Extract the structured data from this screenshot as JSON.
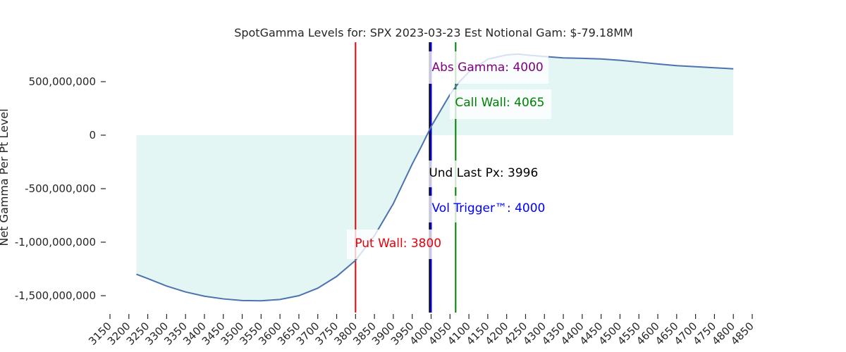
{
  "colors": {
    "curve": "#4c72b0",
    "fill": "#e3f6f3",
    "put_wall": "#e8000b",
    "call_wall": "#008000",
    "abs_gamma": "#800080",
    "vol_trigger": "#0000ff",
    "und_last_px": "#000000",
    "text": "#262626"
  },
  "chart_data": {
    "type": "line",
    "title": "SpotGamma Levels for: SPX  2023-03-23 Est Notional Gam: $-79.18MM",
    "xlabel": "",
    "ylabel": "Net Gamma Per Pt Level",
    "xlim": [
      3150,
      4850
    ],
    "ylim": [
      -1650000000,
      850000000
    ],
    "grid": false,
    "fill_to_zero": true,
    "x_ticks": [
      3150,
      3200,
      3250,
      3300,
      3350,
      3400,
      3450,
      3500,
      3550,
      3600,
      3650,
      3700,
      3750,
      3800,
      3850,
      3900,
      3950,
      4000,
      4050,
      4100,
      4150,
      4200,
      4250,
      4300,
      4350,
      4400,
      4450,
      4500,
      4550,
      4600,
      4650,
      4700,
      4750,
      4800,
      4850
    ],
    "x_tick_labels": [
      "3150",
      "3200",
      "3250",
      "3300",
      "3350",
      "3400",
      "3450",
      "3500",
      "3550",
      "3600",
      "3650",
      "3700",
      "3750",
      "3800",
      "3850",
      "3900",
      "3950",
      "4000",
      "4050",
      "4100",
      "4150",
      "4200",
      "4250",
      "4300",
      "4350",
      "4400",
      "4450",
      "4500",
      "4550",
      "4600",
      "4650",
      "4700",
      "4750",
      "4800",
      "4850"
    ],
    "y_ticks": [
      500000000,
      0,
      -500000000,
      -1000000000,
      -1500000000
    ],
    "y_tick_labels": [
      "500,000,000",
      "0",
      "-500,000,000",
      "-1,000,000,000",
      "-1,500,000,000"
    ],
    "series": [
      {
        "x": [
          3220,
          3250,
          3300,
          3350,
          3400,
          3450,
          3500,
          3550,
          3600,
          3650,
          3700,
          3750,
          3800,
          3850,
          3900,
          3950,
          3975,
          4000,
          4025,
          4050,
          4075,
          4100,
          4150,
          4200,
          4230,
          4250,
          4300,
          4350,
          4400,
          4450,
          4500,
          4550,
          4600,
          4650,
          4700,
          4750,
          4800
        ],
        "y": [
          -1300000000,
          -1340000000,
          -1410000000,
          -1465000000,
          -1505000000,
          -1530000000,
          -1545000000,
          -1548000000,
          -1535000000,
          -1500000000,
          -1430000000,
          -1320000000,
          -1170000000,
          -940000000,
          -640000000,
          -270000000,
          -100000000,
          80000000,
          230000000,
          380000000,
          500000000,
          590000000,
          710000000,
          750000000,
          758000000,
          750000000,
          735000000,
          722000000,
          718000000,
          712000000,
          700000000,
          683000000,
          665000000,
          650000000,
          640000000,
          630000000,
          620000000
        ]
      }
    ],
    "levels": [
      {
        "key": "put_wall",
        "x": 3800,
        "label": "Put Wall: 3800"
      },
      {
        "key": "call_wall",
        "x": 4065,
        "label": "Call Wall: 4065"
      },
      {
        "key": "abs_gamma",
        "x": 4000,
        "label": "Abs Gamma: 4000"
      },
      {
        "key": "vol_trigger",
        "x": 4000,
        "label": "Vol Trigger™: 4000"
      },
      {
        "key": "und_last_px",
        "x": 3996,
        "label": "Und Last Px: 3996"
      }
    ]
  }
}
